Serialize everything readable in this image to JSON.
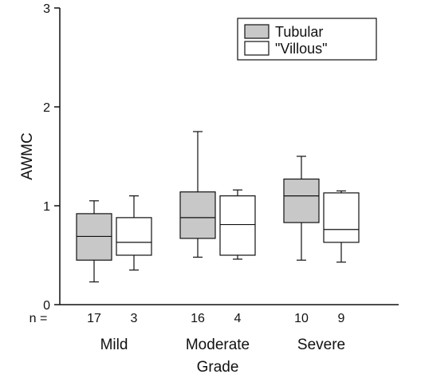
{
  "chart_data": {
    "type": "boxplot",
    "title": "",
    "xlabel": "Grade",
    "ylabel": "AWMC",
    "ylim": [
      0,
      3
    ],
    "yticks": [
      0,
      1,
      2,
      3
    ],
    "categories": [
      "Mild",
      "Moderate",
      "Severe"
    ],
    "n_prefix": "n =",
    "grid": false,
    "legend_position": "top-right",
    "series": [
      {
        "name": "Tubular",
        "fill": "#c8c8c8",
        "boxes": [
          {
            "category": "Mild",
            "n": "17",
            "min": 0.23,
            "q1": 0.45,
            "median": 0.69,
            "q3": 0.92,
            "max": 1.05
          },
          {
            "category": "Moderate",
            "n": "16",
            "min": 0.48,
            "q1": 0.67,
            "median": 0.88,
            "q3": 1.14,
            "max": 1.75
          },
          {
            "category": "Severe",
            "n": "10",
            "min": 0.45,
            "q1": 0.83,
            "median": 1.1,
            "q3": 1.27,
            "max": 1.5
          }
        ]
      },
      {
        "name": "\"Villous\"",
        "fill": "#ffffff",
        "boxes": [
          {
            "category": "Mild",
            "n": "3",
            "min": 0.35,
            "q1": 0.5,
            "median": 0.63,
            "q3": 0.88,
            "max": 1.1
          },
          {
            "category": "Moderate",
            "n": "4",
            "min": 0.46,
            "q1": 0.5,
            "median": 0.81,
            "q3": 1.1,
            "max": 1.16
          },
          {
            "category": "Severe",
            "n": "9",
            "min": 0.43,
            "q1": 0.63,
            "median": 0.76,
            "q3": 1.13,
            "max": 1.15
          }
        ]
      }
    ]
  }
}
